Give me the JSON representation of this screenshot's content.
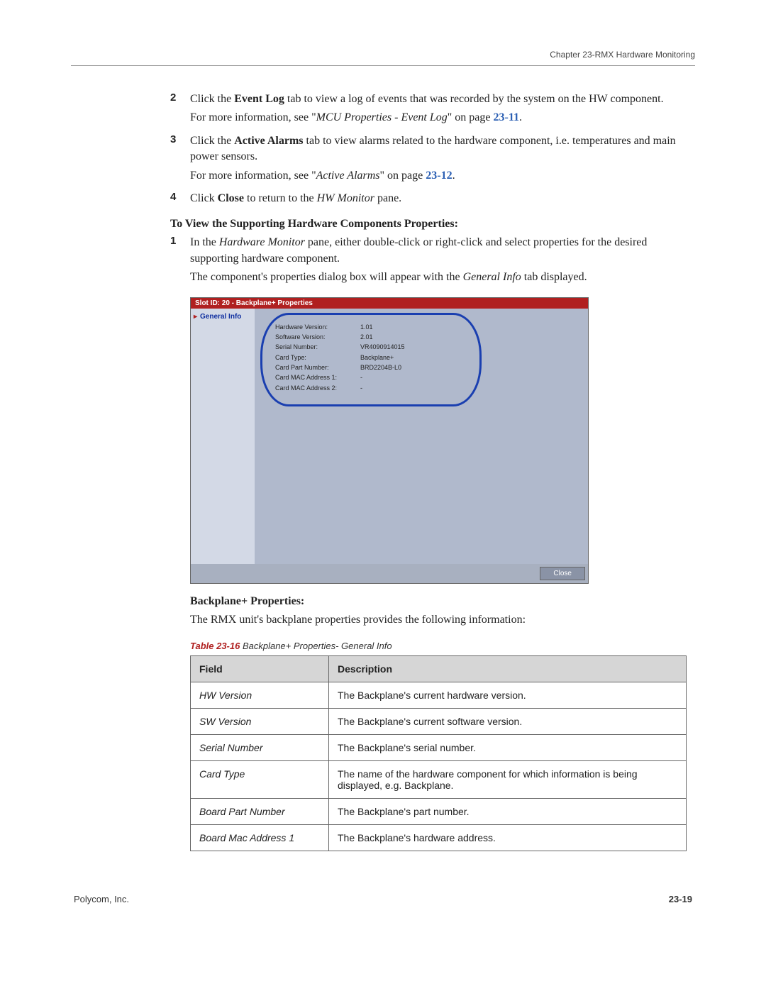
{
  "header": {
    "chapter": "Chapter 23-RMX Hardware Monitoring"
  },
  "steps": [
    {
      "num": "2",
      "paras": [
        "Click the <b>Event Log</b> tab to view a log of events that was recorded by the system on the HW component.",
        "For more information, see \"<i>MCU Properties - Event Log</i>\" on page <ref>23-11</ref>."
      ]
    },
    {
      "num": "3",
      "paras": [
        "Click the <b>Active Alarms</b> tab to view alarms related to the hardware component, i.e. temperatures and main power sensors.",
        "For more information, see \"<i>Active Alarms</i>\" on page <ref>23-12</ref>."
      ]
    },
    {
      "num": "4",
      "paras": [
        "Click <b>Close</b> to return to the <i>HW Monitor</i> pane."
      ]
    }
  ],
  "subheading1": "To View the Supporting Hardware Components Properties:",
  "step1": {
    "num": "1",
    "paras": [
      "In the <i>Hardware Monitor</i> pane, either double-click or right-click and select properties for the desired supporting hardware component.",
      "The component's properties dialog box will appear with the <i>General Info</i> tab displayed."
    ]
  },
  "dialog": {
    "title": "Slot ID: 20 - Backplane+ Properties",
    "side_item": "General Info",
    "rows": [
      {
        "label": "Hardware Version:",
        "value": "1.01"
      },
      {
        "label": "Software Version:",
        "value": "2.01"
      },
      {
        "label": "Serial Number:",
        "value": "VR4090914015"
      },
      {
        "label": "Card Type:",
        "value": "Backplane+"
      },
      {
        "label": "Card Part Number:",
        "value": "BRD2204B-L0"
      },
      {
        "label": "Card MAC Address 1:",
        "value": "-"
      },
      {
        "label": "Card MAC Address 2:",
        "value": "-"
      }
    ],
    "close_label": "Close"
  },
  "backplane_heading": "Backplane+ Properties:",
  "backplane_intro": "The RMX unit's backplane properties provides the following information:",
  "table_caption_num": "Table 23-16",
  "table_caption_text": " Backplane+ Properties- General Info",
  "table": {
    "headers": [
      "Field",
      "Description"
    ],
    "rows": [
      [
        "HW Version",
        "The Backplane's current hardware version."
      ],
      [
        "SW Version",
        "The Backplane's current software version."
      ],
      [
        "Serial Number",
        "The Backplane's serial number."
      ],
      [
        "Card Type",
        "The name of the hardware component for which information is being displayed, e.g. Backplane."
      ],
      [
        "Board Part Number",
        "The Backplane's part number."
      ],
      [
        "Board Mac Address 1",
        "The Backplane's hardware address."
      ]
    ]
  },
  "footer": {
    "left": "Polycom, Inc.",
    "right": "23-19"
  }
}
